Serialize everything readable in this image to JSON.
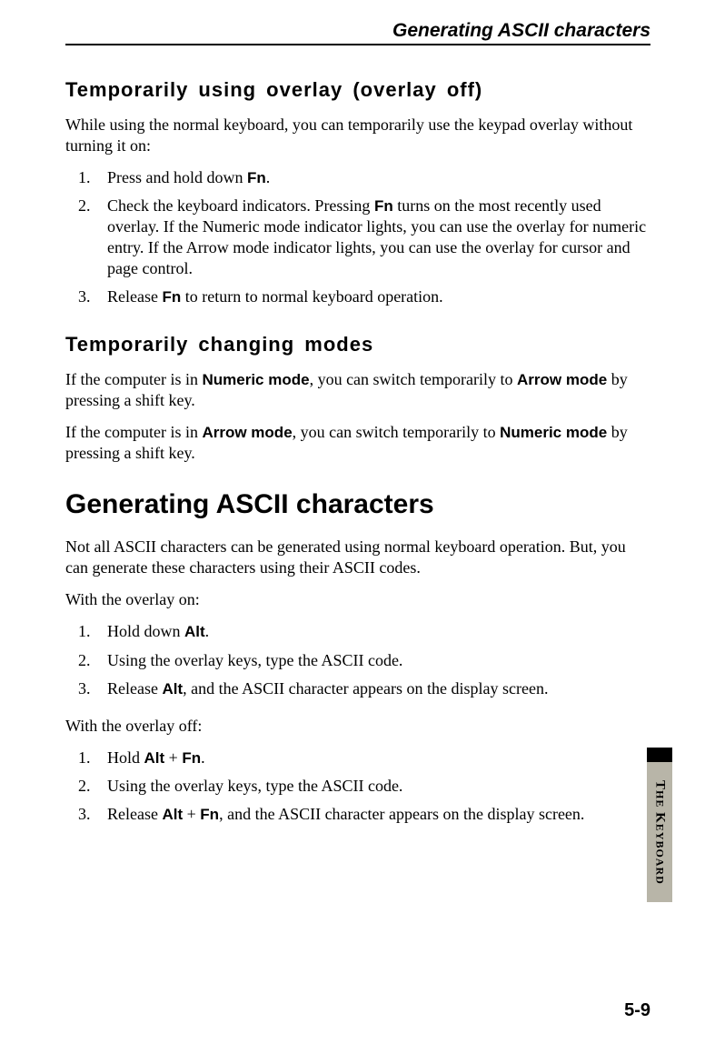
{
  "running_head": "Generating ASCII characters",
  "section1": {
    "title": "Temporarily using overlay (overlay off)",
    "intro": "While using the normal keyboard, you can temporarily use the keypad overlay without turning it on:",
    "steps": [
      {
        "pre": "Press and hold down ",
        "key": "Fn",
        "post": "."
      },
      {
        "pre": "Check the keyboard indicators. Pressing ",
        "key": "Fn",
        "post": " turns on the most recently used overlay. If the Numeric mode indicator lights, you can use the overlay for numeric entry. If the Arrow mode indicator lights, you can use the overlay for cursor and page control."
      },
      {
        "pre": "Release ",
        "key": "Fn",
        "post": " to return to normal keyboard operation."
      }
    ]
  },
  "section2": {
    "title": "Temporarily changing modes",
    "para1": {
      "pre": "If the computer is in ",
      "b1": "Numeric mode",
      "mid": ", you can switch temporarily to ",
      "b2": "Arrow mode",
      "post": " by pressing a shift key."
    },
    "para2": {
      "pre": "If the computer is in ",
      "b1": "Arrow mode",
      "mid": ", you can switch temporarily to ",
      "b2": "Numeric mode",
      "post": " by pressing a shift key."
    }
  },
  "section3": {
    "title": "Generating ASCII characters",
    "intro": "Not all ASCII characters can be generated using normal keyboard operation. But, you can generate these characters using their ASCII codes.",
    "sub1_label": "With the overlay on:",
    "steps_on": [
      {
        "pre": "Hold down ",
        "key": "Alt",
        "post": "."
      },
      {
        "text": "Using the overlay keys, type the ASCII code."
      },
      {
        "pre": "Release ",
        "key": "Alt",
        "post": ", and the ASCII character appears on the display screen."
      }
    ],
    "sub2_label": "With the overlay off:",
    "steps_off": [
      {
        "pre": "Hold ",
        "key": "Alt",
        "mid": " + ",
        "key2": "Fn",
        "post": "."
      },
      {
        "text": "Using the overlay keys, type the ASCII code."
      },
      {
        "pre": "Release ",
        "key": "Alt",
        "mid": " + ",
        "key2": "Fn",
        "post": ", and the ASCII character appears on the display screen."
      }
    ]
  },
  "side_tab": {
    "line1": "T",
    "small1": "HE",
    "space": " ",
    "line2": "K",
    "small2": "EYBOARD"
  },
  "page_number": "5-9",
  "colors": {
    "tab_gray": "#b8b5a8",
    "text": "#000000",
    "bg": "#ffffff"
  },
  "fonts": {
    "body": "Times New Roman",
    "heading": "Arial",
    "body_size_pt": 18,
    "h2_size_pt": 22,
    "h1_size_pt": 30
  }
}
